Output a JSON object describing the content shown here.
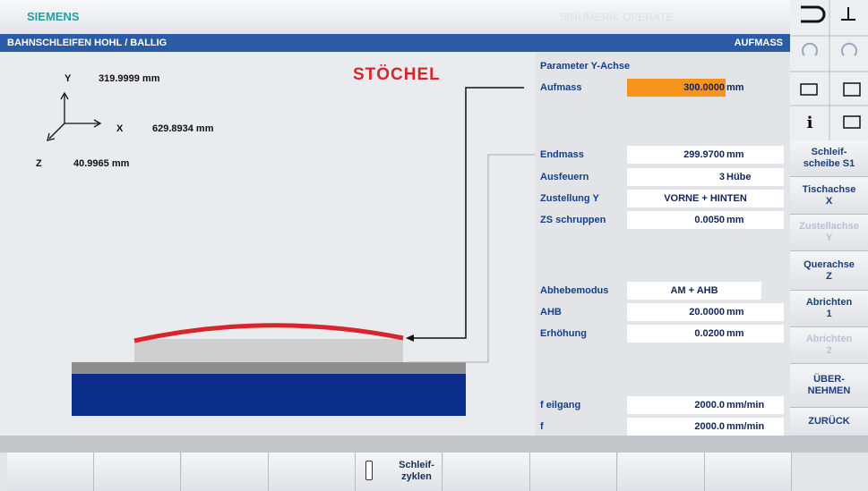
{
  "header": {
    "brand": "SIEMENS",
    "product": "SINUMERIK OPERATE"
  },
  "title_bar": {
    "left": "BAHNSCHLEIFEN HOHL / BALLIG",
    "right": "AUFMASS"
  },
  "graphic": {
    "logo": "STÖCHEL",
    "axes": [
      {
        "axis": "Y",
        "value": "319.9999 mm"
      },
      {
        "axis": "X",
        "value": "629.8934 mm"
      },
      {
        "axis": "Z",
        "value": "40.9965 mm"
      }
    ]
  },
  "parameters": {
    "heading": "Parameter Y-Achse",
    "rows": [
      {
        "label": "Aufmass",
        "value": "300.0000",
        "unit": "mm"
      },
      {
        "label": "Endmass",
        "value": "299.9700",
        "unit": "mm"
      },
      {
        "label": "Ausfeuern",
        "value": "3",
        "unit": "Hübe"
      },
      {
        "label": "Zustellung Y",
        "value": "VORNE + HINTEN"
      },
      {
        "label": "ZS schruppen",
        "value": "0.0050",
        "unit": "mm"
      },
      {
        "label": "Abhebemodus",
        "value": "AM + AHB"
      },
      {
        "label": "AHB",
        "value": "20.0000",
        "unit": "mm"
      },
      {
        "label": "Erhöhung",
        "value": "0.0200",
        "unit": "mm"
      },
      {
        "label": "f eilgang",
        "value": "2000.0",
        "unit": "mm/min"
      },
      {
        "label": "f",
        "value": "2000.0",
        "unit": "mm/min"
      }
    ]
  },
  "softkeys_right": [
    "Schleif-\nscheibe S1",
    "Tischachse\nX",
    "Zustellachse\nY",
    "Querachse\nZ",
    "Abrichten\n1",
    "Abrichten\n2",
    "ÜBER-\nNEHMEN",
    "ZURÜCK"
  ],
  "softkeys_bottom": [
    "Schleif-\nzyklen"
  ]
}
